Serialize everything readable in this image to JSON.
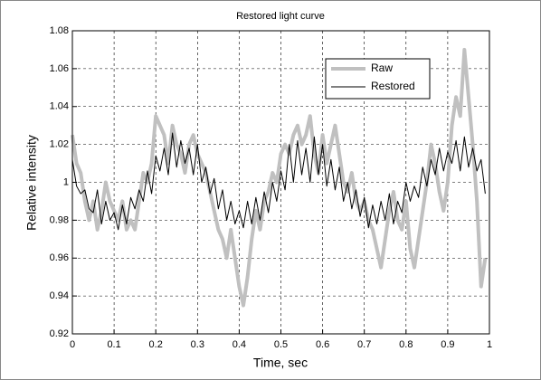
{
  "chart_data": {
    "type": "line",
    "title": "Restored light curve",
    "xlabel": "Time, sec",
    "ylabel": "Relative intensity",
    "x": [
      0,
      0.01,
      0.02,
      0.03,
      0.04,
      0.05,
      0.06,
      0.07,
      0.08,
      0.09,
      0.1,
      0.11,
      0.12,
      0.13,
      0.14,
      0.15,
      0.16,
      0.17,
      0.18,
      0.19,
      0.2,
      0.21,
      0.22,
      0.23,
      0.24,
      0.25,
      0.26,
      0.27,
      0.28,
      0.29,
      0.3,
      0.31,
      0.32,
      0.33,
      0.34,
      0.35,
      0.36,
      0.37,
      0.38,
      0.39,
      0.4,
      0.41,
      0.42,
      0.43,
      0.44,
      0.45,
      0.46,
      0.47,
      0.48,
      0.49,
      0.5,
      0.51,
      0.52,
      0.53,
      0.54,
      0.55,
      0.56,
      0.57,
      0.58,
      0.59,
      0.6,
      0.61,
      0.62,
      0.63,
      0.64,
      0.65,
      0.66,
      0.67,
      0.68,
      0.69,
      0.7,
      0.71,
      0.72,
      0.73,
      0.74,
      0.75,
      0.76,
      0.77,
      0.78,
      0.79,
      0.8,
      0.81,
      0.82,
      0.83,
      0.84,
      0.85,
      0.86,
      0.87,
      0.88,
      0.89,
      0.9,
      0.91,
      0.92,
      0.93,
      0.94,
      0.95,
      0.96,
      0.97,
      0.98,
      0.99
    ],
    "series": [
      {
        "name": "Raw",
        "color": "#c0c0c0",
        "linewidth": 4,
        "values": [
          1.025,
          1.01,
          1.005,
          0.99,
          0.98,
          0.99,
          0.975,
          0.985,
          1.0,
          0.99,
          0.985,
          0.98,
          0.99,
          0.975,
          0.98,
          0.975,
          0.99,
          1.005,
          1.0,
          1.01,
          1.035,
          1.03,
          1.025,
          1.01,
          1.03,
          1.02,
          1.015,
          1.005,
          1.02,
          1.025,
          1.015,
          1.01,
          1.005,
          0.995,
          0.985,
          0.975,
          0.97,
          0.96,
          0.975,
          0.96,
          0.945,
          0.935,
          0.95,
          0.97,
          0.985,
          0.975,
          0.99,
          0.995,
          1.005,
          1.0,
          1.015,
          1.02,
          1.015,
          1.025,
          1.03,
          1.02,
          1.025,
          1.035,
          1.015,
          1.005,
          1.025,
          1.01,
          1.02,
          1.03,
          1.015,
          1.0,
          0.995,
          1.005,
          0.99,
          0.985,
          0.99,
          0.98,
          0.975,
          0.965,
          0.955,
          0.97,
          0.985,
          0.995,
          0.98,
          0.975,
          0.99,
          0.965,
          0.955,
          0.97,
          0.985,
          1.0,
          1.02,
          1.01,
          0.995,
          0.985,
          1.0,
          1.03,
          1.045,
          1.035,
          1.07,
          1.045,
          1.02,
          0.99,
          0.945,
          0.96
        ]
      },
      {
        "name": "Restored",
        "color": "#000000",
        "linewidth": 1,
        "values": [
          1.012,
          0.998,
          0.994,
          0.996,
          0.986,
          0.984,
          0.996,
          0.978,
          0.99,
          0.98,
          0.984,
          0.975,
          0.988,
          0.978,
          0.992,
          0.986,
          0.996,
          0.99,
          1.006,
          0.994,
          1.014,
          1.006,
          1.018,
          1.004,
          1.026,
          1.008,
          1.022,
          1.01,
          1.018,
          1.004,
          1.02,
          1.0,
          1.008,
          0.994,
          1.002,
          0.986,
          0.996,
          0.98,
          0.99,
          0.978,
          0.985,
          0.976,
          0.99,
          0.978,
          0.992,
          0.98,
          0.995,
          0.984,
          1.0,
          0.99,
          1.006,
          0.996,
          1.02,
          1.0,
          1.022,
          1.004,
          1.018,
          1.0,
          1.024,
          1.004,
          1.02,
          0.998,
          1.012,
          0.996,
          1.008,
          0.99,
          1.0,
          0.986,
          0.996,
          0.982,
          0.992,
          0.976,
          0.988,
          0.978,
          0.99,
          0.98,
          0.994,
          0.978,
          0.99,
          0.984,
          1.0,
          0.99,
          0.998,
          0.992,
          1.008,
          0.998,
          1.012,
          1.004,
          1.018,
          1.006,
          1.016,
          1.01,
          1.022,
          1.006,
          1.024,
          1.008,
          1.018,
          1.006,
          1.012,
          0.994
        ]
      }
    ],
    "xlim": [
      0,
      1
    ],
    "xticks": [
      0,
      0.1,
      0.2,
      0.3,
      0.4,
      0.5,
      0.6,
      0.7,
      0.8,
      0.9,
      1
    ],
    "ylim": [
      0.92,
      1.08
    ],
    "yticks": [
      0.92,
      0.94,
      0.96,
      0.98,
      1,
      1.02,
      1.04,
      1.06,
      1.08
    ],
    "grid": true,
    "legend": "upper right"
  }
}
